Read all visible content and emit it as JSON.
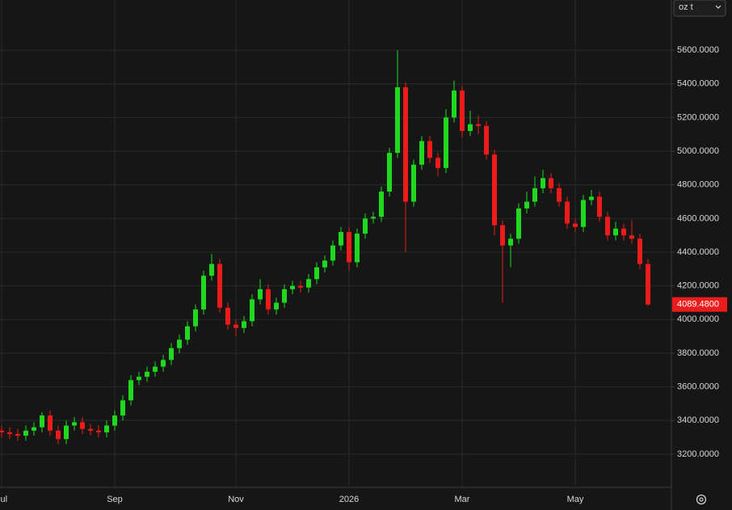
{
  "chart_data": {
    "type": "candlestick",
    "unit_selector": "oz t",
    "categories": [
      "Jul",
      null,
      null,
      null,
      null,
      null,
      null,
      null,
      null,
      null,
      null,
      null,
      null,
      null,
      "Sep",
      null,
      null,
      null,
      null,
      null,
      null,
      null,
      null,
      null,
      null,
      null,
      null,
      null,
      null,
      "Nov",
      null,
      null,
      null,
      null,
      null,
      null,
      null,
      null,
      null,
      null,
      null,
      null,
      null,
      "2026",
      null,
      null,
      null,
      null,
      null,
      null,
      null,
      null,
      null,
      null,
      null,
      null,
      null,
      "Mar",
      null,
      null,
      null,
      null,
      null,
      null,
      null,
      null,
      null,
      null,
      null,
      null,
      null,
      "May",
      null,
      null,
      null,
      null,
      null,
      null,
      null,
      null,
      null
    ],
    "open": [
      3340,
      3330,
      3320,
      3310,
      3340,
      3360,
      3430,
      3340,
      3290,
      3370,
      3390,
      3350,
      3340,
      3330,
      3370,
      3430,
      3520,
      3640,
      3660,
      3690,
      3720,
      3760,
      3830,
      3880,
      3960,
      4060,
      4260,
      4330,
      4070,
      3970,
      3950,
      3990,
      4120,
      4180,
      4060,
      4100,
      4180,
      4200,
      4190,
      4240,
      4310,
      4350,
      4440,
      4520,
      4340,
      4510,
      4600,
      4610,
      4760,
      4990,
      5380,
      4700,
      4920,
      5060,
      4960,
      4900,
      5200,
      5360,
      5120,
      5160,
      5150,
      4980,
      4560,
      4440,
      4480,
      4660,
      4700,
      4780,
      4840,
      4780,
      4700,
      4570,
      4550,
      4710,
      4730,
      4610,
      4500,
      4540,
      4500,
      4480,
      4330
    ],
    "high": [
      3370,
      3360,
      3350,
      3370,
      3390,
      3450,
      3460,
      3370,
      3400,
      3420,
      3420,
      3380,
      3370,
      3400,
      3460,
      3550,
      3670,
      3690,
      3720,
      3750,
      3790,
      3860,
      3910,
      3990,
      4090,
      4290,
      4390,
      4360,
      4100,
      4000,
      4020,
      4150,
      4240,
      4210,
      4130,
      4210,
      4230,
      4230,
      4270,
      4340,
      4380,
      4470,
      4550,
      4550,
      4540,
      4630,
      4640,
      4790,
      5020,
      5600,
      5410,
      4950,
      5090,
      5090,
      4990,
      5250,
      5420,
      5390,
      5240,
      5210,
      5180,
      5010,
      4590,
      4510,
      4690,
      4760,
      4850,
      4890,
      4870,
      4810,
      4730,
      4600,
      4740,
      4770,
      4760,
      4640,
      4580,
      4570,
      4590,
      4510,
      4360
    ],
    "low": [
      3300,
      3290,
      3280,
      3280,
      3310,
      3330,
      3310,
      3260,
      3260,
      3340,
      3320,
      3310,
      3300,
      3300,
      3340,
      3400,
      3490,
      3610,
      3630,
      3660,
      3690,
      3730,
      3800,
      3850,
      3930,
      4030,
      4230,
      4040,
      3940,
      3900,
      3920,
      3960,
      4090,
      4030,
      4030,
      4070,
      4150,
      4160,
      4160,
      4210,
      4280,
      4320,
      4410,
      4290,
      4310,
      4480,
      4570,
      4580,
      4730,
      4960,
      4400,
      4670,
      4890,
      4930,
      4850,
      4870,
      5170,
      5080,
      5090,
      5100,
      4950,
      4500,
      4100,
      4310,
      4450,
      4630,
      4670,
      4750,
      4750,
      4670,
      4540,
      4520,
      4520,
      4680,
      4580,
      4470,
      4470,
      4470,
      4450,
      4300,
      4080
    ],
    "close": [
      3330,
      3320,
      3310,
      3340,
      3360,
      3430,
      3340,
      3290,
      3370,
      3390,
      3350,
      3340,
      3330,
      3370,
      3430,
      3520,
      3640,
      3660,
      3690,
      3720,
      3760,
      3830,
      3880,
      3960,
      4060,
      4260,
      4330,
      4070,
      3970,
      3950,
      3990,
      4120,
      4180,
      4060,
      4100,
      4180,
      4200,
      4190,
      4240,
      4310,
      4350,
      4440,
      4520,
      4340,
      4510,
      4600,
      4610,
      4760,
      4990,
      5380,
      4700,
      4920,
      5060,
      4960,
      4900,
      5200,
      5360,
      5120,
      5160,
      5150,
      4980,
      4560,
      4440,
      4480,
      4660,
      4700,
      4780,
      4840,
      4780,
      4700,
      4570,
      4550,
      4710,
      4730,
      4610,
      4500,
      4540,
      4500,
      4480,
      4330,
      4089.48
    ],
    "up_color": "#1fd81f",
    "down_color": "#ec1c1c",
    "last_price": {
      "value": 4089.48,
      "label": "4089.4800"
    },
    "ylim": [
      3003,
      5898
    ],
    "yticks": [
      {
        "value": 3200,
        "label": "3200.0000"
      },
      {
        "value": 3400,
        "label": "3400.0000"
      },
      {
        "value": 3600,
        "label": "3600.0000"
      },
      {
        "value": 3800,
        "label": "3800.0000"
      },
      {
        "value": 4000,
        "label": "4000.0000"
      },
      {
        "value": 4200,
        "label": "4200.0000"
      },
      {
        "value": 4400,
        "label": "4400.0000"
      },
      {
        "value": 4600,
        "label": "4600.0000"
      },
      {
        "value": 4800,
        "label": "4800.0000"
      },
      {
        "value": 5000,
        "label": "5000.0000"
      },
      {
        "value": 5200,
        "label": "5200.0000"
      },
      {
        "value": 5400,
        "label": "5400.0000"
      },
      {
        "value": 5600,
        "label": "5600.0000"
      }
    ],
    "grid": true
  }
}
